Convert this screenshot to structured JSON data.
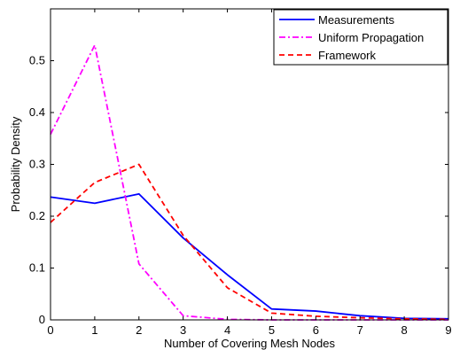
{
  "chart_data": {
    "type": "line",
    "title": "",
    "xlabel": "Number of Covering Mesh Nodes",
    "ylabel": "Probability Density",
    "xlim": [
      0,
      9
    ],
    "ylim": [
      0,
      0.6
    ],
    "x_ticks": [
      0,
      1,
      2,
      3,
      4,
      5,
      6,
      7,
      8,
      9
    ],
    "y_ticks": [
      0,
      0.1,
      0.2,
      0.3,
      0.4,
      0.5
    ],
    "y_tick_labels": [
      "0",
      "0.1",
      "0.2",
      "0.3",
      "0.4",
      "0.5"
    ],
    "grid": false,
    "legend_position": "top-right",
    "x": [
      0,
      1,
      2,
      3,
      4,
      5,
      6,
      7,
      8,
      9
    ],
    "series": [
      {
        "name": "Measurements",
        "color": "#0000ff",
        "dash": "solid",
        "values": [
          0.237,
          0.225,
          0.243,
          0.158,
          0.087,
          0.021,
          0.017,
          0.008,
          0.003,
          0.002
        ]
      },
      {
        "name": "Uniform Propagation",
        "color": "#ff00ff",
        "dash": "dashdot",
        "values": [
          0.358,
          0.53,
          0.108,
          0.008,
          0.001,
          0.0,
          0.0,
          0.0,
          0.0,
          0.0
        ]
      },
      {
        "name": "Framework",
        "color": "#ff0000",
        "dash": "dashed",
        "values": [
          0.188,
          0.265,
          0.3,
          0.163,
          0.062,
          0.013,
          0.007,
          0.004,
          0.002,
          0.001
        ]
      }
    ]
  }
}
